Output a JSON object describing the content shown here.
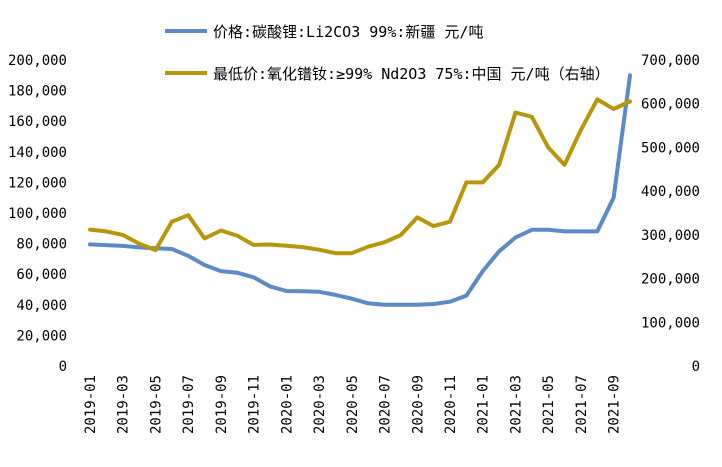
{
  "chart_data": {
    "type": "line",
    "x": [
      "2019-01",
      "2019-02",
      "2019-03",
      "2019-04",
      "2019-05",
      "2019-06",
      "2019-07",
      "2019-08",
      "2019-09",
      "2019-10",
      "2019-11",
      "2019-12",
      "2020-01",
      "2020-02",
      "2020-03",
      "2020-04",
      "2020-05",
      "2020-06",
      "2020-07",
      "2020-08",
      "2020-09",
      "2020-10",
      "2020-11",
      "2020-12",
      "2021-01",
      "2021-02",
      "2021-03",
      "2021-04",
      "2021-05",
      "2021-06",
      "2021-07",
      "2021-08",
      "2021-09",
      "2021-10"
    ],
    "x_tick_labels": [
      "2019-01",
      "2019-03",
      "2019-05",
      "2019-07",
      "2019-09",
      "2019-11",
      "2020-01",
      "2020-03",
      "2020-05",
      "2020-07",
      "2020-09",
      "2020-11",
      "2021-01",
      "2021-03",
      "2021-05",
      "2021-07",
      "2021-09"
    ],
    "left_axis": {
      "ylim": [
        0,
        200000
      ],
      "ticks": [
        "0",
        "20,000",
        "40,000",
        "60,000",
        "80,000",
        "100,000",
        "120,000",
        "140,000",
        "160,000",
        "180,000",
        "200,000"
      ]
    },
    "right_axis": {
      "ylim": [
        0,
        700000
      ],
      "ticks": [
        "0",
        "100,000",
        "200,000",
        "300,000",
        "400,000",
        "500,000",
        "600,000",
        "700,000"
      ]
    },
    "legend_placement": "top",
    "series": [
      {
        "name": "价格:碳酸锂:Li2CO3 99%:新疆 元/吨",
        "color": "#5b8ac4",
        "axis": "left",
        "values": [
          79500,
          79000,
          78500,
          77500,
          77000,
          76500,
          72000,
          66000,
          62000,
          61000,
          58000,
          52000,
          49000,
          48800,
          48500,
          46500,
          44000,
          41000,
          40000,
          40000,
          40000,
          40500,
          42000,
          46000,
          62000,
          75000,
          84000,
          89000,
          89000,
          88000,
          88000,
          88000,
          110000,
          190000
        ]
      },
      {
        "name": "最低价:氧化镨钕:≥99% Nd2O3 75%:中国 元/吨（右轴）",
        "color": "#b8960b",
        "axis": "right",
        "values": [
          312000,
          308000,
          300000,
          280000,
          265000,
          330000,
          345000,
          292000,
          310000,
          298000,
          277000,
          278000,
          275000,
          272000,
          266000,
          258000,
          258000,
          273000,
          283000,
          300000,
          340000,
          320000,
          330000,
          420000,
          420000,
          460000,
          580000,
          570000,
          500000,
          460000,
          540000,
          610000,
          588000,
          605000
        ]
      }
    ]
  }
}
